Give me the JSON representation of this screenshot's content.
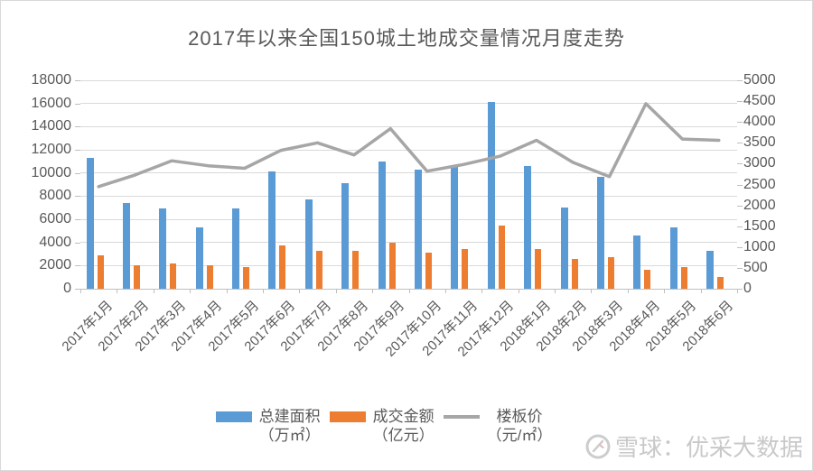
{
  "title": "2017年以来全国150城土地成交量情况月度走势",
  "watermark": {
    "icon": "xueqiu-snowball-logo",
    "text": "雪球：优采大数据"
  },
  "legend": {
    "items": [
      {
        "label": "总建面积",
        "unit": "（万㎡）",
        "swatch": "blue-bar",
        "color": "#5B9BD5"
      },
      {
        "label": "成交金额",
        "unit": "（亿元）",
        "swatch": "orange-bar",
        "color": "#ED7D31"
      },
      {
        "label": "楼板价",
        "unit": "（元/㎡）",
        "swatch": "gray-line",
        "color": "#A6A6A6"
      }
    ]
  },
  "colors": {
    "bar_area": "#5B9BD5",
    "bar_amount": "#ED7D31",
    "line_price": "#A6A6A6",
    "gridline": "#d9d9d9",
    "axis_text": "#595959",
    "watermark_text": "#c9c9c9"
  },
  "chart_data": {
    "type": "bar",
    "subtype": "combo-dual-axis-bar-line",
    "title": "2017年以来全国150城土地成交量情况月度走势",
    "categories": [
      "2017年1月",
      "2017年2月",
      "2017年3月",
      "2017年4月",
      "2017年5月",
      "2017年6月",
      "2017年7月",
      "2017年8月",
      "2017年9月",
      "2017年10月",
      "2017年11月",
      "2017年12月",
      "2018年1月",
      "2018年2月",
      "2018年3月",
      "2018年4月",
      "2018年5月",
      "2018年6月"
    ],
    "series": [
      {
        "name": "总建面积（万㎡）",
        "type": "bar",
        "axis": "left",
        "values": [
          11300,
          7400,
          6900,
          5300,
          6900,
          10100,
          7700,
          9100,
          11000,
          10300,
          10500,
          16100,
          10600,
          7000,
          9700,
          4600,
          5300,
          3300
        ]
      },
      {
        "name": "成交金额（亿元）",
        "type": "bar",
        "axis": "left",
        "values": [
          2900,
          2050,
          2200,
          2050,
          1900,
          3750,
          3300,
          3300,
          4000,
          3150,
          3450,
          5450,
          3450,
          2550,
          2700,
          1600,
          1900,
          1000
        ]
      },
      {
        "name": "楼板价（元/㎡）",
        "type": "line",
        "axis": "right",
        "values": [
          2450,
          2730,
          3070,
          2950,
          2890,
          3320,
          3500,
          3210,
          3840,
          2820,
          2980,
          3180,
          3560,
          3030,
          2690,
          4440,
          3590,
          3560
        ]
      }
    ],
    "left_axis": {
      "min": 0,
      "max": 18000,
      "step": 2000,
      "ticks": [
        0,
        2000,
        4000,
        6000,
        8000,
        10000,
        12000,
        14000,
        16000,
        18000
      ]
    },
    "right_axis": {
      "min": 0,
      "max": 5000,
      "step": 500,
      "ticks": [
        0,
        500,
        1000,
        1500,
        2000,
        2500,
        3000,
        3500,
        4000,
        4500,
        5000
      ]
    },
    "grid": true,
    "legend_position": "bottom"
  }
}
